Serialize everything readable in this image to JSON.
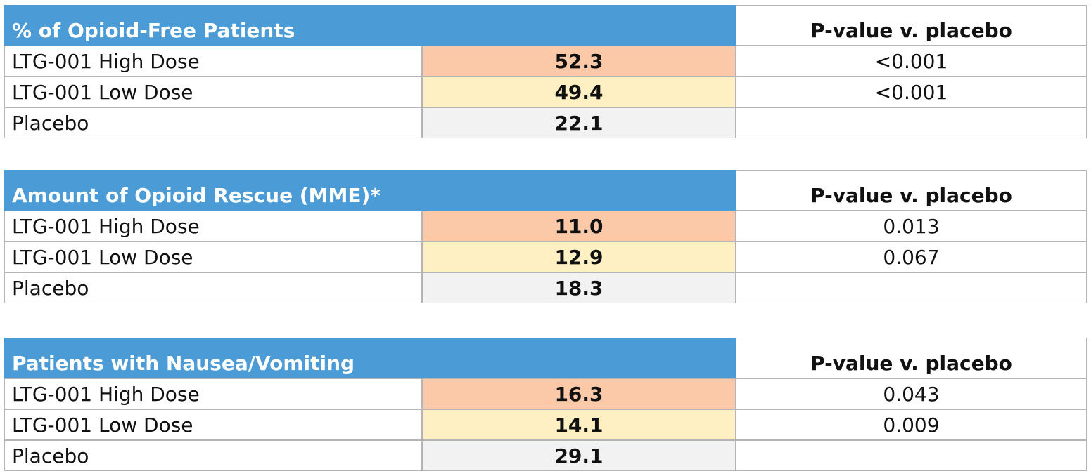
{
  "tables": [
    {
      "title": "% of Opioid-Free Patients",
      "p_header": "P-value v. placebo",
      "rows": [
        {
          "label": "LTG-001 High Dose",
          "value": "52.3",
          "p_value": "<0.001"
        },
        {
          "label": "LTG-001 Low Dose",
          "value": "49.4",
          "p_value": "<0.001"
        },
        {
          "label": "Placebo",
          "value": "22.1"
        }
      ]
    },
    {
      "title": "Amount of Opioid Rescue (MME)*",
      "p_header": "P-value v. placebo",
      "rows": [
        {
          "label": "LTG-001 High Dose",
          "value": "11.0",
          "p_value": "0.013"
        },
        {
          "label": "LTG-001 Low Dose",
          "value": "12.9",
          "p_value": "0.067"
        },
        {
          "label": "Placebo",
          "value": "18.3"
        }
      ]
    },
    {
      "title": "Patients with Nausea/Vomiting",
      "p_header": "P-value v. placebo",
      "rows": [
        {
          "label": "LTG-001 High Dose",
          "value": "16.3",
          "p_value": "0.043"
        },
        {
          "label": "LTG-001 Low Dose",
          "value": "14.1",
          "p_value": "0.009"
        },
        {
          "label": "Placebo",
          "value": "29.1"
        }
      ]
    }
  ]
}
